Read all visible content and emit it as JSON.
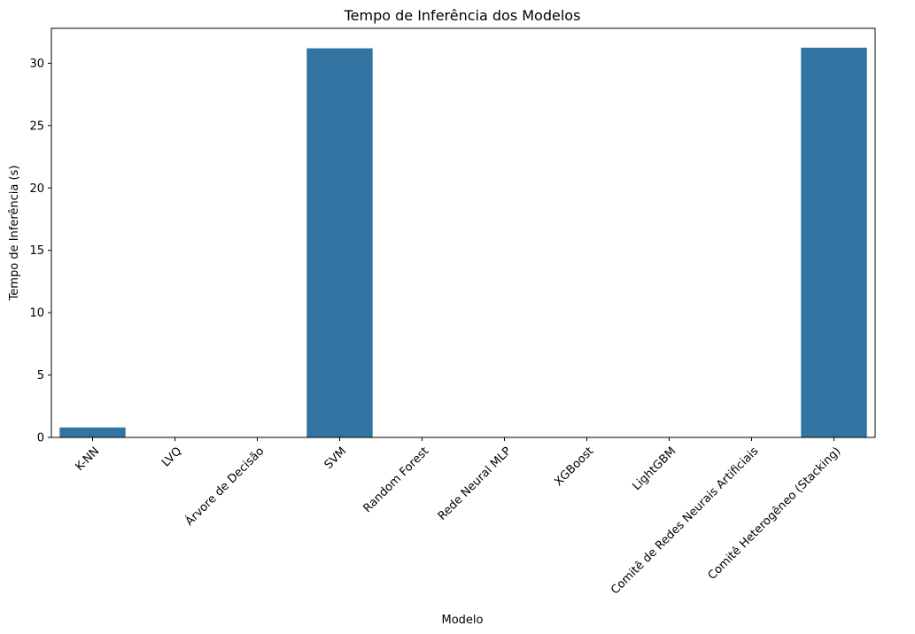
{
  "chart_data": {
    "type": "bar",
    "title": "Tempo de Inferência dos Modelos",
    "xlabel": "Modelo",
    "ylabel": "Tempo de Inferência (s)",
    "categories": [
      "K-NN",
      "LVQ",
      "Árvore de Decisão",
      "SVM",
      "Random Forest",
      "Rede Neural MLP",
      "XGBoost",
      "LightGBM",
      "Comitê de Redes Neurais Artificiais",
      "Comitê Heterogêneo (Stacking)"
    ],
    "values": [
      0.8,
      0.01,
      0.01,
      31.2,
      0.02,
      0.01,
      0.01,
      0.01,
      0.01,
      31.25
    ],
    "ylim": [
      0,
      32.8
    ],
    "yticks": [
      0,
      5,
      10,
      15,
      20,
      25,
      30
    ],
    "bar_color": "#3274a1",
    "grid": false,
    "legend": "none"
  }
}
